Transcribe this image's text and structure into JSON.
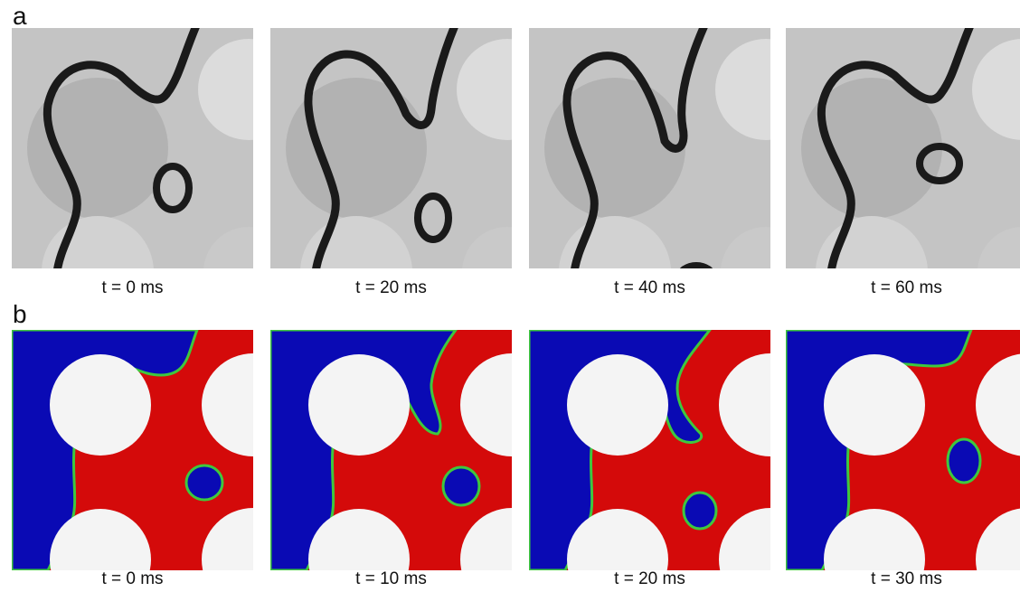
{
  "panels": [
    {
      "letter": "a",
      "kind": "experiment",
      "frames": [
        {
          "caption": "t = 0 ms"
        },
        {
          "caption": "t = 20 ms"
        },
        {
          "caption": "t = 40 ms"
        },
        {
          "caption": "t = 60 ms"
        }
      ]
    },
    {
      "letter": "b",
      "kind": "simulation",
      "frames": [
        {
          "caption": "t = 0 ms"
        },
        {
          "caption": "t = 10 ms"
        },
        {
          "caption": "t = 20 ms"
        },
        {
          "caption": "t = 30 ms"
        }
      ]
    }
  ],
  "colors": {
    "phase_a": "#0a0ab4",
    "phase_b": "#d40a0a",
    "interface": "#3ec83e",
    "grain": "#f4f4f4",
    "photo_bg": "#c4c4c4",
    "photo_pore": "#b2b2b2",
    "photo_line": "#1a1a1a"
  }
}
